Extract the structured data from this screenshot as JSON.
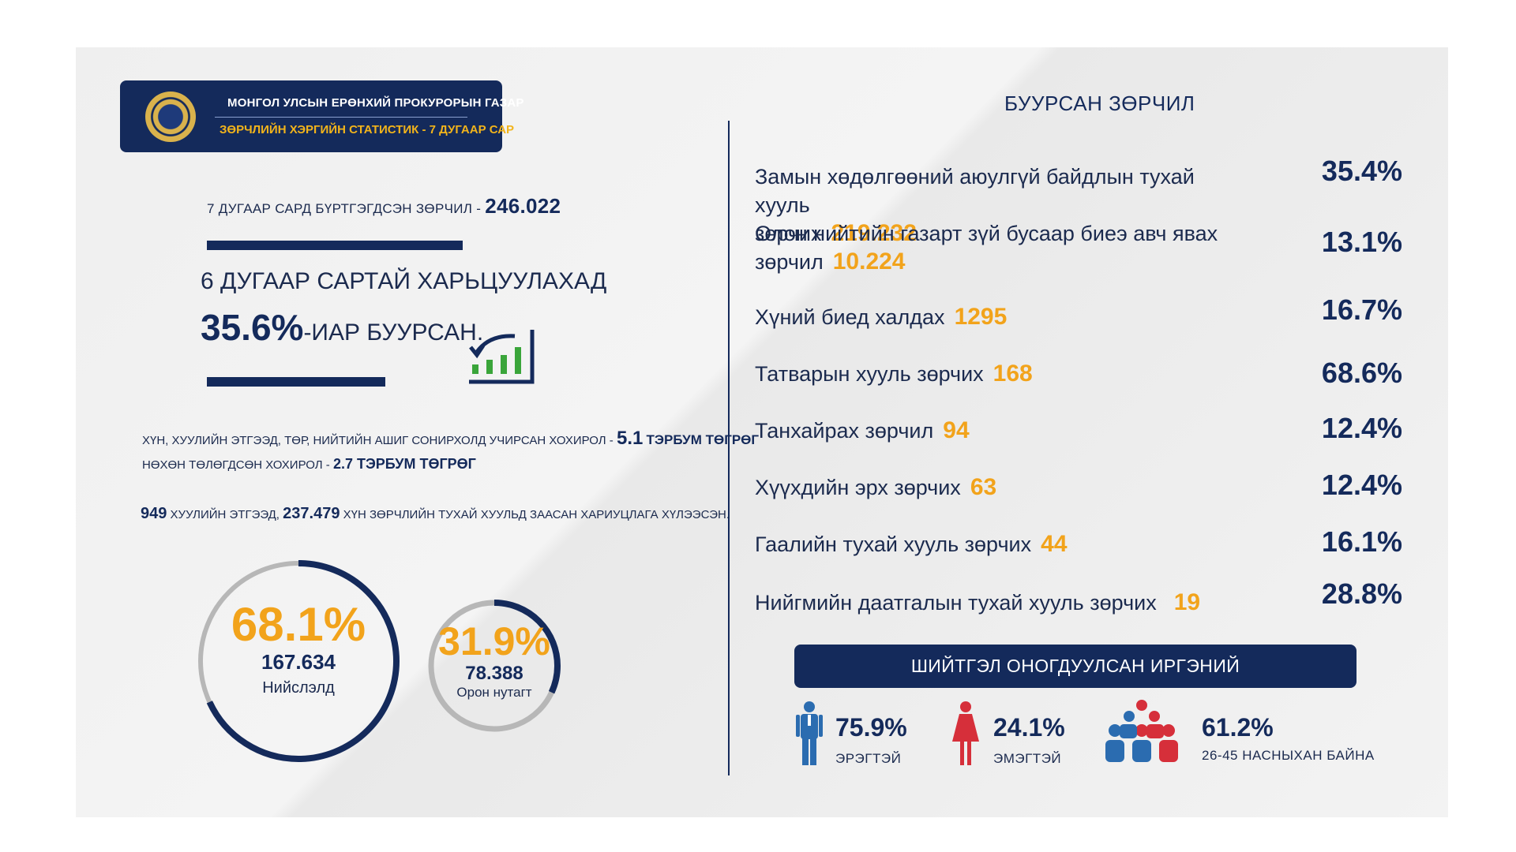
{
  "header": {
    "org": "МОНГОЛ УЛСЫН ЕРӨНХИЙ ПРОКУРОРЫН ГАЗАР",
    "subtitle": "ЗӨРЧЛИЙН ХЭРГИЙН СТАТИСТИК - 7 ДУГААР САР"
  },
  "left": {
    "registered_label": "7 ДУГААР САРД БҮРТГЭГДСЭН ЗӨРЧИЛ -",
    "registered_value": "246.022",
    "compare_line": "6 ДУГААР САРТАЙ ХАРЬЦУУЛАХАД",
    "decrease_pct": "35.6%",
    "decrease_suffix": "-ИАР БУУРСАН.",
    "damage_label": "ХҮН, ХУУЛИЙН ЭТГЭЭД, ТӨР, НИЙТИЙН АШИГ СОНИРХОЛД УЧИРСАН ХОХИРОЛ -",
    "damage_value": "5.1",
    "damage_unit": "ТЭРБУМ ТӨГРӨГ",
    "compensated_label": "НӨХӨН ТӨЛӨГДСӨН ХОХИРОЛ -",
    "compensated_value": "2.7 ТЭРБУМ ТӨГРӨГ",
    "entities_value": "949",
    "entities_label": "ХУУЛИЙН ЭТГЭЭД,",
    "persons_value": "237.479",
    "persons_label": "ХҮН ЗӨРЧЛИЙН ТУХАЙ ХУУЛЬД ЗААСАН ХАРИУЦЛАГА ХҮЛЭЭСЭН."
  },
  "circles": [
    {
      "pct": "68.1%",
      "count": "167.634",
      "label": "Нийслэлд",
      "fraction": 0.681
    },
    {
      "pct": "31.9%",
      "count": "78.388",
      "label": "Орон нутагт",
      "fraction": 0.319
    }
  ],
  "right": {
    "title": "БУУРСАН ЗӨРЧИЛ",
    "rows": [
      {
        "label": "Замын хөдөлгөөний аюулгүй байдлын тухай хууль",
        "label2": "зөрчих",
        "value": "219.232",
        "pct": "35.4%"
      },
      {
        "label": "Олон нийтийн газарт зүй бусаар биеэ авч явах",
        "label2": "зөрчил",
        "value": "10.224",
        "pct": "13.1%"
      },
      {
        "label": "Хүний биед халдах",
        "value": "1295",
        "pct": "16.7%"
      },
      {
        "label": "Татварын хууль зөрчих",
        "value": "168",
        "pct": "68.6%"
      },
      {
        "label": "Танхайрах зөрчил",
        "value": "94",
        "pct": "12.4%"
      },
      {
        "label": "Хүүхдийн эрх зөрчих",
        "value": "63",
        "pct": "12.4%"
      },
      {
        "label": "Гаалийн тухай хууль зөрчих",
        "value": "44",
        "pct": "16.1%"
      },
      {
        "label": "Нийгмийн даатгалын тухай хууль зөрчих",
        "value": "19",
        "pct": "28.8%"
      }
    ],
    "penalty_title": "ШИЙТГЭЛ ОНОГДУУЛСАН ИРГЭНИЙ",
    "stats": [
      {
        "pct": "75.9%",
        "label": "ЭРЭГТЭЙ",
        "icon": "male-icon"
      },
      {
        "pct": "24.1%",
        "label": "ЭМЭГТЭЙ",
        "icon": "female-icon"
      },
      {
        "pct": "61.2%",
        "label": "26-45 НАСНЫХАН БАЙНА",
        "icon": "group-icon"
      }
    ]
  },
  "colors": {
    "navy": "#142a5b",
    "orange": "#f2a31b",
    "green": "#3aa53a",
    "male": "#2b6cb0",
    "female": "#d62f3a"
  }
}
